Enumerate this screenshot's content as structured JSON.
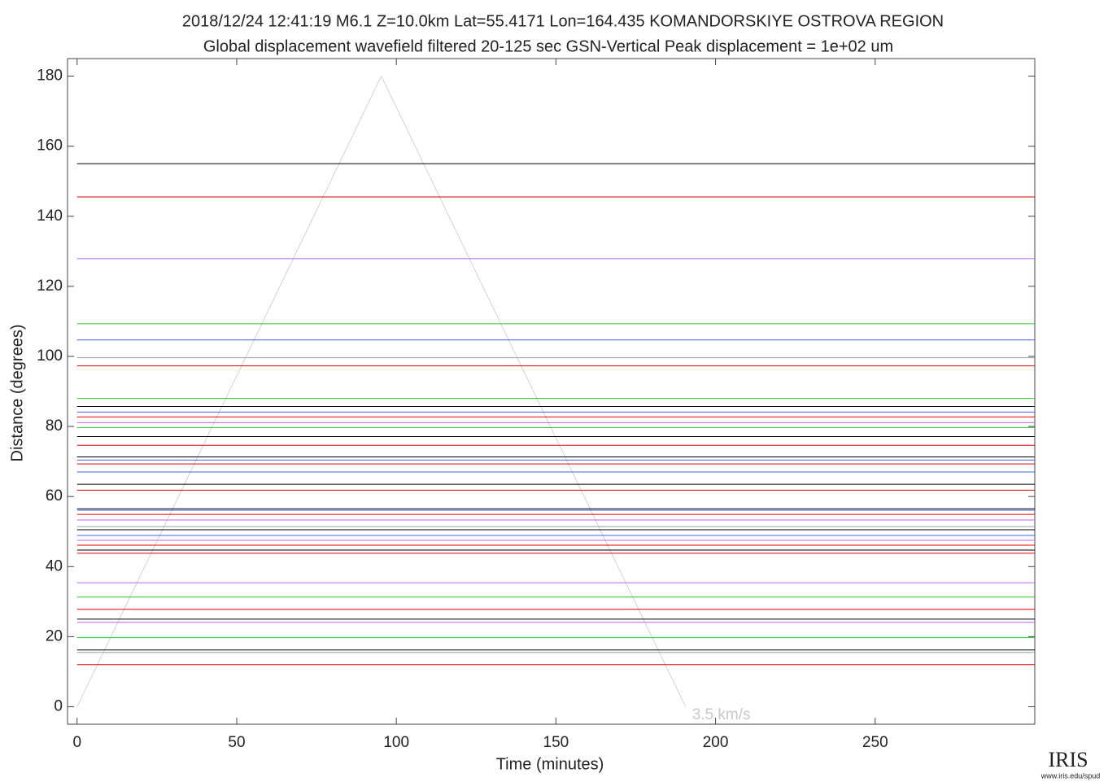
{
  "chart_data": {
    "type": "record-section",
    "title": "2018/12/24  12:41:19  M6.1  Z=10.0km  Lat=55.4171 Lon=164.435  KOMANDORSKIYE OSTROVA REGION",
    "subtitle": "Global displacement wavefield     filtered 20-125 sec     GSN-Vertical     Peak displacement = 1e+02 um",
    "xlabel": "Time (minutes)",
    "ylabel": "Distance (degrees)",
    "xlim": [
      -3,
      300
    ],
    "ylim": [
      -5,
      185
    ],
    "xticks": [
      0,
      50,
      100,
      150,
      200,
      250
    ],
    "yticks": [
      0,
      20,
      40,
      60,
      80,
      100,
      120,
      140,
      160,
      180
    ],
    "reference_line": {
      "label": "3.5 km/s",
      "color": "#c8c8c8",
      "x": [
        0,
        95.3,
        190.6
      ],
      "y": [
        0,
        180,
        0
      ]
    },
    "traces": [
      {
        "distance": 155.0,
        "color": "#000000"
      },
      {
        "distance": 145.5,
        "color": "#e00000"
      },
      {
        "distance": 127.9,
        "color": "#c060f0"
      },
      {
        "distance": 109.3,
        "color": "#30c030"
      },
      {
        "distance": 104.7,
        "color": "#4060e0"
      },
      {
        "distance": 99.6,
        "color": "#90a0a0"
      },
      {
        "distance": 97.3,
        "color": "#e00000"
      },
      {
        "distance": 88.0,
        "color": "#30c030"
      },
      {
        "distance": 85.7,
        "color": "#000000"
      },
      {
        "distance": 84.1,
        "color": "#4060e0"
      },
      {
        "distance": 82.7,
        "color": "#e00000"
      },
      {
        "distance": 81.1,
        "color": "#c060f0"
      },
      {
        "distance": 79.7,
        "color": "#30c030"
      },
      {
        "distance": 77.1,
        "color": "#000000"
      },
      {
        "distance": 74.6,
        "color": "#e00000"
      },
      {
        "distance": 71.3,
        "color": "#000000"
      },
      {
        "distance": 70.4,
        "color": "#4060e0"
      },
      {
        "distance": 69.3,
        "color": "#e00000"
      },
      {
        "distance": 67.0,
        "color": "#4060e0"
      },
      {
        "distance": 63.5,
        "color": "#000000"
      },
      {
        "distance": 61.8,
        "color": "#e00000"
      },
      {
        "distance": 56.5,
        "color": "#000000"
      },
      {
        "distance": 56.1,
        "color": "#4060e0"
      },
      {
        "distance": 54.9,
        "color": "#e00000"
      },
      {
        "distance": 53.3,
        "color": "#c060f0"
      },
      {
        "distance": 51.4,
        "color": "#90a0a0"
      },
      {
        "distance": 50.5,
        "color": "#000000"
      },
      {
        "distance": 48.9,
        "color": "#4060e0"
      },
      {
        "distance": 47.5,
        "color": "#c060f0"
      },
      {
        "distance": 46.1,
        "color": "#e00000"
      },
      {
        "distance": 44.7,
        "color": "#000000"
      },
      {
        "distance": 43.8,
        "color": "#e00000"
      },
      {
        "distance": 35.4,
        "color": "#c060f0"
      },
      {
        "distance": 31.3,
        "color": "#30c030"
      },
      {
        "distance": 27.8,
        "color": "#e00000"
      },
      {
        "distance": 25.0,
        "color": "#000000"
      },
      {
        "distance": 24.1,
        "color": "#c060f0"
      },
      {
        "distance": 19.7,
        "color": "#30c030"
      },
      {
        "distance": 16.2,
        "color": "#000000"
      },
      {
        "distance": 15.5,
        "color": "#90a0a0"
      },
      {
        "distance": 12.0,
        "color": "#e00000"
      }
    ]
  },
  "logo": {
    "name": "IRIS",
    "url": "www.iris.edu/spud"
  }
}
